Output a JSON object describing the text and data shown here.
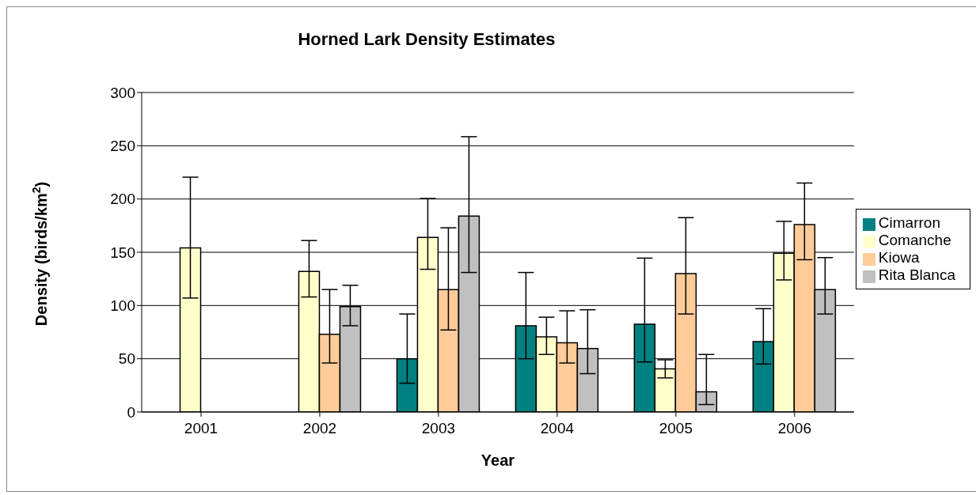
{
  "chart_data": {
    "type": "bar",
    "title": "Horned Lark Density Estimates",
    "xlabel": "Year",
    "ylabel": "Density (birds/km$^{2}$)",
    "categories": [
      "2001",
      "2002",
      "2003",
      "2004",
      "2005",
      "2006"
    ],
    "series": [
      {
        "name": "Cimarron",
        "color": "#008080",
        "values": [
          null,
          null,
          50,
          81,
          82.5,
          66
        ],
        "errors": [
          null,
          null,
          [
            27,
            92
          ],
          [
            50,
            131
          ],
          [
            47,
            144.5
          ],
          [
            45,
            97
          ]
        ]
      },
      {
        "name": "Comanche",
        "color": "#ffffcc",
        "values": [
          154,
          132,
          164,
          70.5,
          40.5,
          149
        ],
        "errors": [
          [
            107,
            220.5
          ],
          [
            108,
            161
          ],
          [
            134,
            200.5
          ],
          [
            54,
            89
          ],
          [
            32,
            49
          ],
          [
            124,
            179
          ]
        ]
      },
      {
        "name": "Kiowa",
        "color": "#ffcc99",
        "values": [
          null,
          73,
          115,
          65,
          130,
          176
        ],
        "errors": [
          null,
          [
            46,
            115
          ],
          [
            77,
            173
          ],
          [
            46,
            95
          ],
          [
            92,
            182.5
          ],
          [
            143,
            215
          ]
        ]
      },
      {
        "name": "Rita Blanca",
        "color": "#c0c0c0",
        "values": [
          null,
          99,
          184,
          59.5,
          19,
          115
        ],
        "errors": [
          null,
          [
            81,
            119
          ],
          [
            131,
            258.5
          ],
          [
            36,
            96
          ],
          [
            7,
            54
          ],
          [
            92,
            145
          ]
        ]
      }
    ],
    "ylim": [
      0,
      300
    ],
    "yticks": [
      0,
      50,
      100,
      150,
      200,
      250,
      300
    ],
    "grid": "y",
    "legend": "right"
  }
}
